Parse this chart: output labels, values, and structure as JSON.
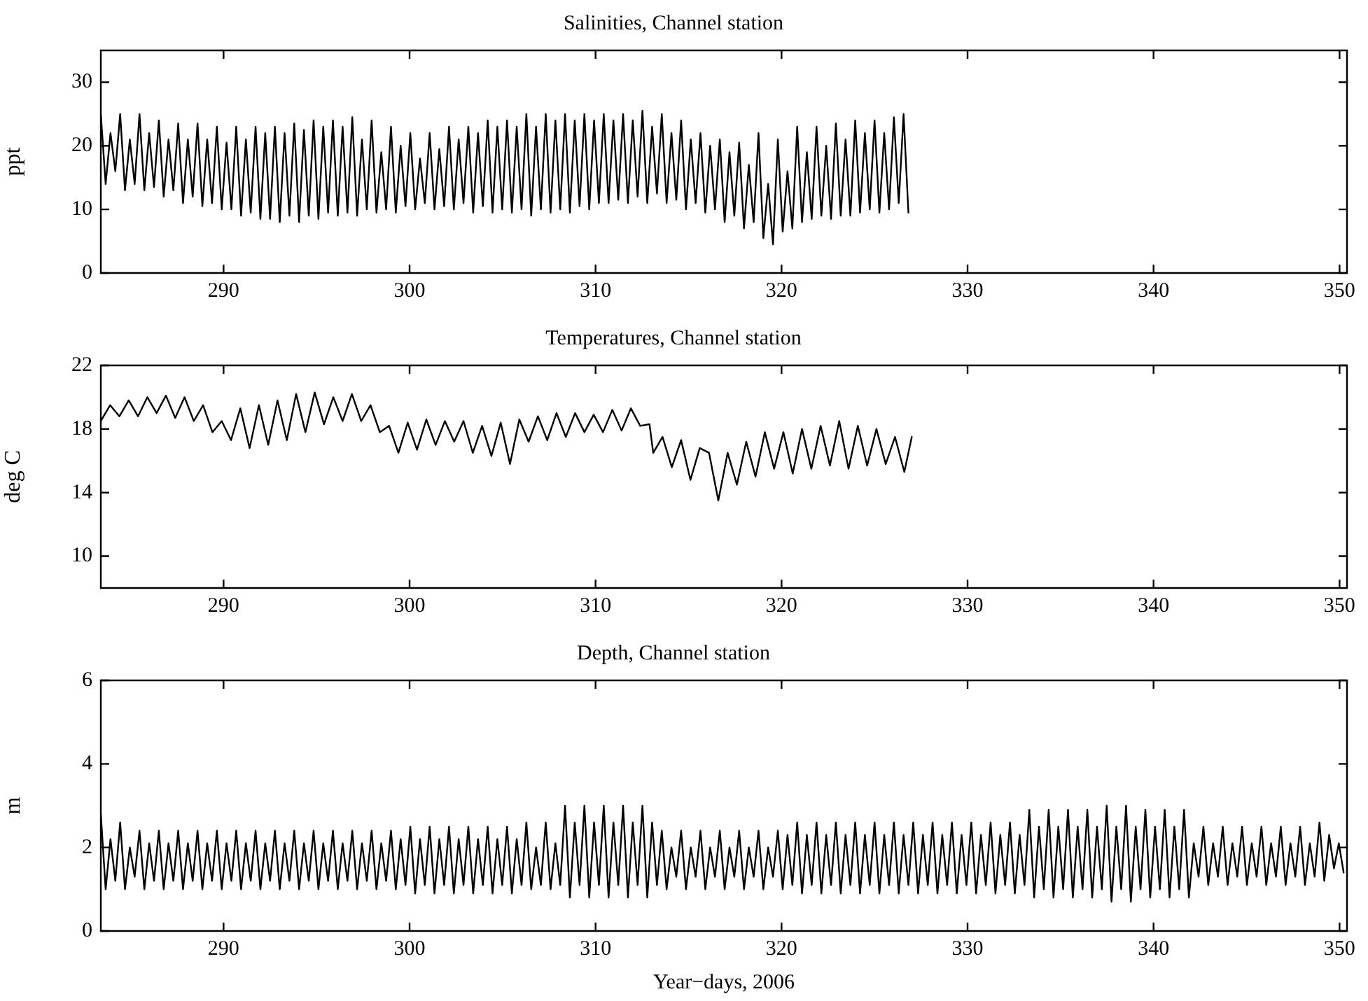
{
  "chart_data": [
    {
      "type": "line",
      "title": "Salinities, Channel station",
      "ylabel": "ppt",
      "color": "#000000",
      "xlim": [
        283.4,
        350.4
      ],
      "xticks": [
        290,
        300,
        310,
        320,
        330,
        340,
        350
      ],
      "ylim": [
        0,
        35
      ],
      "yticks": [
        0,
        10,
        20,
        30
      ],
      "x": [
        283.4,
        283.66,
        283.92,
        284.18,
        284.44,
        284.7,
        284.96,
        285.22,
        285.48,
        285.74,
        286,
        286.26,
        286.52,
        286.78,
        287.04,
        287.3,
        287.56,
        287.82,
        288.08,
        288.34,
        288.6,
        288.86,
        289.12,
        289.38,
        289.64,
        289.9,
        290.16,
        290.42,
        290.68,
        290.94,
        291.2,
        291.46,
        291.72,
        291.98,
        292.24,
        292.5,
        292.76,
        293.02,
        293.28,
        293.54,
        293.8,
        294.06,
        294.32,
        294.58,
        294.84,
        295.1,
        295.36,
        295.62,
        295.88,
        296.14,
        296.4,
        296.66,
        296.92,
        297.18,
        297.44,
        297.7,
        297.96,
        298.22,
        298.48,
        298.74,
        299,
        299.26,
        299.52,
        299.78,
        300.04,
        300.3,
        300.56,
        300.82,
        301.08,
        301.34,
        301.6,
        301.86,
        302.12,
        302.38,
        302.64,
        302.9,
        303.16,
        303.42,
        303.68,
        303.94,
        304.2,
        304.46,
        304.72,
        304.98,
        305.24,
        305.5,
        305.76,
        306.02,
        306.28,
        306.54,
        306.8,
        307.06,
        307.32,
        307.58,
        307.84,
        308.1,
        308.36,
        308.62,
        308.88,
        309.14,
        309.4,
        309.66,
        309.92,
        310.18,
        310.44,
        310.7,
        310.96,
        311.22,
        311.48,
        311.74,
        312,
        312.26,
        312.52,
        312.78,
        313.04,
        313.3,
        313.56,
        313.82,
        314.08,
        314.34,
        314.6,
        314.86,
        315.12,
        315.38,
        315.64,
        315.9,
        316.16,
        316.42,
        316.68,
        316.94,
        317.2,
        317.46,
        317.72,
        317.98,
        318.24,
        318.5,
        318.76,
        319.02,
        319.28,
        319.54,
        319.8,
        320.06,
        320.32,
        320.58,
        320.84,
        321.1,
        321.36,
        321.62,
        321.88,
        322.14,
        322.4,
        322.66,
        322.92,
        323.18,
        323.44,
        323.7,
        323.96,
        324.22,
        324.48,
        324.74,
        325,
        325.26,
        325.52,
        325.78,
        326.04,
        326.3,
        326.56,
        326.82
      ],
      "values": [
        25,
        14,
        22,
        16,
        25,
        13,
        21,
        14,
        25,
        13,
        22,
        13.5,
        24,
        12,
        21,
        13,
        23.5,
        11,
        21,
        12,
        23.5,
        10.5,
        21,
        11,
        23,
        10,
        20.5,
        10,
        23,
        9,
        21,
        9.5,
        23,
        8.5,
        22,
        8.5,
        23,
        8,
        22,
        9,
        23.5,
        8,
        22.5,
        9,
        24,
        8.5,
        23,
        9.5,
        24,
        9,
        23,
        9.5,
        24.5,
        9,
        21,
        10,
        24,
        9.5,
        19,
        10,
        23,
        9.5,
        20,
        10.5,
        22,
        10,
        18,
        11,
        22,
        10,
        19.5,
        10.5,
        23,
        10,
        21,
        11,
        23,
        9.5,
        22,
        10.5,
        24,
        9.5,
        23,
        10,
        24,
        9.5,
        23,
        10,
        25,
        9,
        23,
        10,
        25,
        9.5,
        24,
        10,
        25,
        9.5,
        24,
        10.5,
        25,
        10,
        24,
        11,
        25,
        11,
        24,
        11.5,
        25,
        11,
        24,
        12,
        25.5,
        11,
        23,
        12.5,
        25,
        11,
        22,
        11.5,
        24,
        10,
        21,
        11,
        22,
        9.5,
        20,
        10,
        21,
        8,
        19,
        9,
        20.5,
        7,
        17,
        8,
        22,
        5.5,
        14,
        4.5,
        21,
        6.5,
        16,
        7,
        23,
        8,
        19,
        8.5,
        23,
        9,
        20,
        8.5,
        23.5,
        9,
        21,
        9,
        24,
        9.5,
        22,
        10,
        24,
        9.5,
        22,
        10,
        24.5,
        11,
        25,
        9.5
      ]
    },
    {
      "type": "line",
      "title": "Temperatures, Channel station",
      "ylabel": "deg C",
      "color": "#000000",
      "xlim": [
        283.4,
        350.4
      ],
      "xticks": [
        290,
        300,
        310,
        320,
        330,
        340,
        350
      ],
      "ylim": [
        8,
        22
      ],
      "yticks": [
        10,
        14,
        18,
        22
      ],
      "x": [
        283.4,
        283.9,
        284.4,
        284.9,
        285.4,
        285.9,
        286.4,
        286.9,
        287.4,
        287.9,
        288.4,
        288.9,
        289.4,
        289.9,
        290.4,
        290.9,
        291.4,
        291.9,
        292.4,
        292.9,
        293.4,
        293.9,
        294.4,
        294.9,
        295.4,
        295.9,
        296.4,
        296.9,
        297.4,
        297.9,
        298.4,
        298.9,
        299.4,
        299.9,
        300.4,
        300.9,
        301.4,
        301.9,
        302.4,
        302.9,
        303.4,
        303.9,
        304.4,
        304.9,
        305.4,
        305.9,
        306.4,
        306.9,
        307.4,
        307.9,
        308.4,
        308.9,
        309.4,
        309.9,
        310.4,
        310.9,
        311.4,
        311.9,
        312.4,
        312.9,
        313.1,
        313.6,
        314.1,
        314.6,
        315.1,
        315.6,
        316.1,
        316.6,
        317.1,
        317.6,
        318.1,
        318.6,
        319.1,
        319.6,
        320.1,
        320.6,
        321.1,
        321.6,
        322.1,
        322.6,
        323.1,
        323.6,
        324.1,
        324.6,
        325.1,
        325.6,
        326.1,
        326.6,
        327
      ],
      "values": [
        18.5,
        19.5,
        18.8,
        19.8,
        18.8,
        20,
        19,
        20.1,
        18.7,
        20,
        18.5,
        19.5,
        17.8,
        18.5,
        17.3,
        19.3,
        16.8,
        19.5,
        17,
        19.8,
        17.3,
        20.2,
        17.8,
        20.3,
        18.3,
        20,
        18.5,
        20.2,
        18.5,
        19.5,
        17.8,
        18.2,
        16.5,
        18.4,
        16.7,
        18.6,
        17,
        18.5,
        17.2,
        18.5,
        16.5,
        18.2,
        16.3,
        18.4,
        15.8,
        18.6,
        17.2,
        18.8,
        17.3,
        19,
        17.5,
        19,
        17.8,
        18.9,
        17.8,
        19.2,
        17.9,
        19.3,
        18.2,
        18.3,
        16.5,
        17.5,
        15.6,
        17.3,
        14.8,
        16.8,
        16.5,
        13.5,
        16.5,
        14.5,
        17.2,
        15,
        17.8,
        15.5,
        17.8,
        15.2,
        18,
        15.5,
        18.2,
        15.7,
        18.5,
        15.5,
        18.2,
        15.7,
        18,
        15.8,
        17.5,
        15.3,
        17.5
      ]
    },
    {
      "type": "line",
      "title": "Depth, Channel station",
      "ylabel": "m",
      "xlabel": "Year−days, 2006",
      "color": "#000000",
      "xlim": [
        283.4,
        350.4
      ],
      "xticks": [
        290,
        300,
        310,
        320,
        330,
        340,
        350
      ],
      "ylim": [
        0,
        6
      ],
      "yticks": [
        0,
        2,
        4,
        6
      ],
      "x": [
        283.4,
        283.66,
        283.92,
        284.18,
        284.44,
        284.7,
        284.96,
        285.22,
        285.48,
        285.74,
        286,
        286.26,
        286.52,
        286.78,
        287.04,
        287.3,
        287.56,
        287.82,
        288.08,
        288.34,
        288.6,
        288.86,
        289.12,
        289.38,
        289.64,
        289.9,
        290.16,
        290.42,
        290.68,
        290.94,
        291.2,
        291.46,
        291.72,
        291.98,
        292.24,
        292.5,
        292.76,
        293.02,
        293.28,
        293.54,
        293.8,
        294.06,
        294.32,
        294.58,
        294.84,
        295.1,
        295.36,
        295.62,
        295.88,
        296.14,
        296.4,
        296.66,
        296.92,
        297.18,
        297.44,
        297.7,
        297.96,
        298.22,
        298.48,
        298.74,
        299,
        299.26,
        299.52,
        299.78,
        300.04,
        300.3,
        300.56,
        300.82,
        301.08,
        301.34,
        301.6,
        301.86,
        302.12,
        302.38,
        302.64,
        302.9,
        303.16,
        303.42,
        303.68,
        303.94,
        304.2,
        304.46,
        304.72,
        304.98,
        305.24,
        305.5,
        305.76,
        306.02,
        306.28,
        306.54,
        306.8,
        307.06,
        307.32,
        307.58,
        307.84,
        308.1,
        308.36,
        308.62,
        308.88,
        309.14,
        309.4,
        309.66,
        309.92,
        310.18,
        310.44,
        310.7,
        310.96,
        311.22,
        311.48,
        311.74,
        312,
        312.26,
        312.52,
        312.78,
        313.04,
        313.3,
        313.56,
        313.82,
        314.08,
        314.34,
        314.6,
        314.86,
        315.12,
        315.38,
        315.64,
        315.9,
        316.16,
        316.42,
        316.68,
        316.94,
        317.2,
        317.46,
        317.72,
        317.98,
        318.24,
        318.5,
        318.76,
        319.02,
        319.28,
        319.54,
        319.8,
        320.06,
        320.32,
        320.58,
        320.84,
        321.1,
        321.36,
        321.62,
        321.88,
        322.14,
        322.4,
        322.66,
        322.92,
        323.18,
        323.44,
        323.7,
        323.96,
        324.22,
        324.48,
        324.74,
        325,
        325.26,
        325.52,
        325.78,
        326.04,
        326.3,
        326.56,
        326.82,
        327.08,
        327.34,
        327.6,
        327.86,
        328.12,
        328.38,
        328.64,
        328.9,
        329.16,
        329.42,
        329.68,
        329.94,
        330.2,
        330.46,
        330.72,
        330.98,
        331.24,
        331.5,
        331.76,
        332.02,
        332.28,
        332.54,
        332.8,
        333.06,
        333.32,
        333.58,
        333.84,
        334.1,
        334.36,
        334.62,
        334.88,
        335.14,
        335.4,
        335.66,
        335.92,
        336.18,
        336.44,
        336.7,
        336.96,
        337.22,
        337.48,
        337.74,
        338,
        338.26,
        338.52,
        338.78,
        339.04,
        339.3,
        339.56,
        339.82,
        340.08,
        340.34,
        340.6,
        340.86,
        341.12,
        341.38,
        341.64,
        341.9,
        342.16,
        342.42,
        342.68,
        342.94,
        343.2,
        343.46,
        343.72,
        343.98,
        344.24,
        344.5,
        344.76,
        345.02,
        345.28,
        345.54,
        345.8,
        346.06,
        346.32,
        346.58,
        346.84,
        347.1,
        347.36,
        347.62,
        347.88,
        348.14,
        348.4,
        348.66,
        348.92,
        349.18,
        349.44,
        349.7,
        349.96,
        350.22
      ],
      "values": [
        2.8,
        1.0,
        2.2,
        1.2,
        2.6,
        1.0,
        2.0,
        1.3,
        2.4,
        1.0,
        2.1,
        1.2,
        2.4,
        1.0,
        2.1,
        1.2,
        2.4,
        1.0,
        2.1,
        1.2,
        2.4,
        1.0,
        2.1,
        1.2,
        2.4,
        1.0,
        2.1,
        1.2,
        2.4,
        1.0,
        2.1,
        1.2,
        2.4,
        1.0,
        2.1,
        1.2,
        2.4,
        1.0,
        2.1,
        1.2,
        2.4,
        1.0,
        2.1,
        1.2,
        2.4,
        1.0,
        2.1,
        1.2,
        2.4,
        1.0,
        2.1,
        1.2,
        2.4,
        1.0,
        2.1,
        1.2,
        2.4,
        1.0,
        2.1,
        1.2,
        2.4,
        1.0,
        2.2,
        1.1,
        2.5,
        0.9,
        2.2,
        1.1,
        2.5,
        0.9,
        2.2,
        1.1,
        2.5,
        0.9,
        2.2,
        1.1,
        2.5,
        0.9,
        2.2,
        1.1,
        2.5,
        0.9,
        2.2,
        1.1,
        2.5,
        0.9,
        2.2,
        1.1,
        2.6,
        1.0,
        2.0,
        1.1,
        2.6,
        1.0,
        2.1,
        1.1,
        3.0,
        0.8,
        2.6,
        1.1,
        3.0,
        0.8,
        2.6,
        1.1,
        3.0,
        0.8,
        2.6,
        1.1,
        3.0,
        0.8,
        2.6,
        1.1,
        3.0,
        0.8,
        2.6,
        1.1,
        2.4,
        1.0,
        2.0,
        1.3,
        2.4,
        1.0,
        2.0,
        1.3,
        2.4,
        1.0,
        2.0,
        1.3,
        2.4,
        1.0,
        2.0,
        1.3,
        2.4,
        1.0,
        2.0,
        1.3,
        2.4,
        1.0,
        2.0,
        1.3,
        2.4,
        1.0,
        2.3,
        1.1,
        2.6,
        0.9,
        2.3,
        1.1,
        2.6,
        0.9,
        2.3,
        1.1,
        2.6,
        0.9,
        2.3,
        1.1,
        2.6,
        0.9,
        2.3,
        1.1,
        2.6,
        0.9,
        2.3,
        1.1,
        2.6,
        0.9,
        2.3,
        1.1,
        2.6,
        0.9,
        2.3,
        1.1,
        2.6,
        0.9,
        2.3,
        1.1,
        2.6,
        0.9,
        2.3,
        1.1,
        2.6,
        0.9,
        2.3,
        1.1,
        2.6,
        0.9,
        2.3,
        1.1,
        2.6,
        0.9,
        2.3,
        1.1,
        2.9,
        0.8,
        2.5,
        1.0,
        2.9,
        0.8,
        2.5,
        1.0,
        2.9,
        0.8,
        2.5,
        1.0,
        2.9,
        0.8,
        2.5,
        1.0,
        3.0,
        0.7,
        2.5,
        1.0,
        3.0,
        0.7,
        2.5,
        1.0,
        2.9,
        0.8,
        2.5,
        1.0,
        2.9,
        0.8,
        2.5,
        1.0,
        2.9,
        0.8,
        2.1,
        1.3,
        2.5,
        1.1,
        2.1,
        1.3,
        2.5,
        1.1,
        2.1,
        1.3,
        2.5,
        1.1,
        2.1,
        1.3,
        2.5,
        1.1,
        2.1,
        1.3,
        2.5,
        1.1,
        2.1,
        1.3,
        2.5,
        1.1,
        2.1,
        1.3,
        2.6,
        1.2,
        2.3,
        1.5,
        2.1,
        1.4
      ]
    }
  ]
}
